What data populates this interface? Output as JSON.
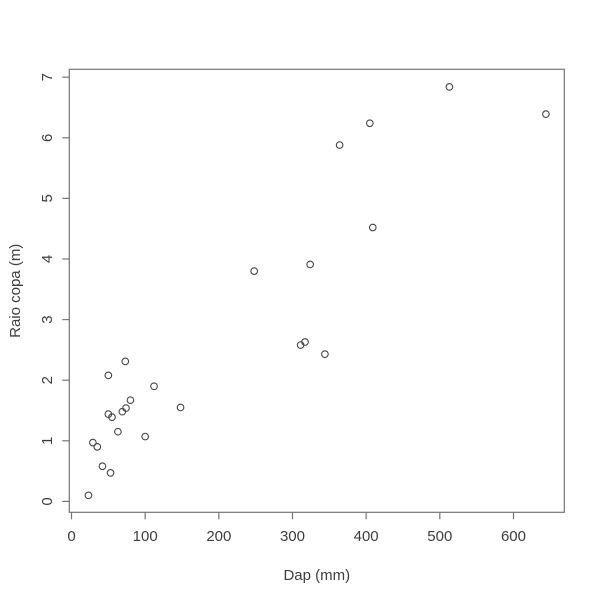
{
  "chart_data": {
    "type": "scatter",
    "title": "",
    "xlabel": "Dap (mm)",
    "ylabel": "Raio copa (m)",
    "x_ticks": [
      0,
      100,
      200,
      300,
      400,
      500,
      600
    ],
    "x_tick_labels": [
      "0",
      "100",
      "200",
      "300",
      "400",
      "500",
      "600"
    ],
    "y_ticks": [
      0,
      1,
      2,
      3,
      4,
      5,
      6,
      7
    ],
    "y_tick_labels": [
      "0",
      "1",
      "2",
      "3",
      "4",
      "5",
      "6",
      "7"
    ],
    "xlim": [
      -3,
      669
    ],
    "ylim": [
      -0.18,
      7.13
    ],
    "grid": false,
    "legend": "none",
    "marker": "open-circle",
    "points": [
      [
        23,
        0.1
      ],
      [
        29,
        0.97
      ],
      [
        35,
        0.9
      ],
      [
        42,
        0.58
      ],
      [
        50,
        1.44
      ],
      [
        50,
        2.08
      ],
      [
        53,
        0.47
      ],
      [
        55,
        1.39
      ],
      [
        63,
        1.15
      ],
      [
        69,
        1.48
      ],
      [
        73,
        2.31
      ],
      [
        74,
        1.54
      ],
      [
        80,
        1.67
      ],
      [
        100,
        1.07
      ],
      [
        112,
        1.9
      ],
      [
        148,
        1.55
      ],
      [
        248,
        3.8
      ],
      [
        311,
        2.58
      ],
      [
        317,
        2.63
      ],
      [
        324,
        3.91
      ],
      [
        344,
        2.43
      ],
      [
        364,
        5.88
      ],
      [
        405,
        6.24
      ],
      [
        409,
        4.52
      ],
      [
        513,
        6.84
      ],
      [
        644,
        6.39
      ]
    ],
    "colors": {
      "background": "#ffffff",
      "axis_line": "#757575",
      "text": "#3d3d3d",
      "marker_stroke": "#454545"
    }
  }
}
